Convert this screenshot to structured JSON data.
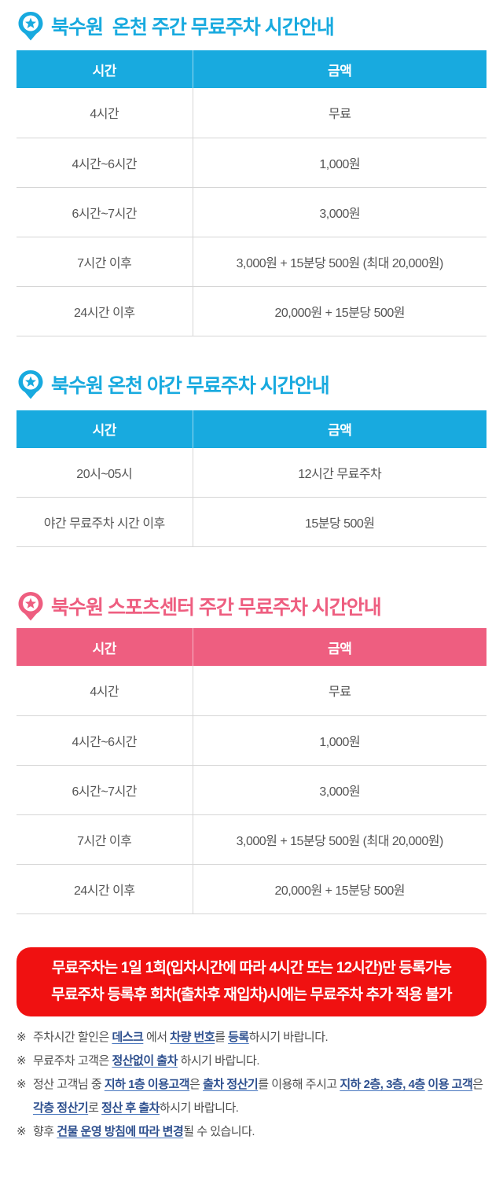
{
  "colors": {
    "blue": "#18aadf",
    "pink": "#ee5e80",
    "red": "#f01111",
    "link": "#2d4f8e",
    "body_text": "#555555",
    "note_text": "#4d4d4d",
    "divider": "#d6d6d6"
  },
  "sections": [
    {
      "id": "onsen-day",
      "accent": "blue",
      "title": "북수원  온천 주간 무료주차 시간안내",
      "table": {
        "headers": [
          "시간",
          "금액"
        ],
        "rows": [
          [
            "4시간",
            "무료"
          ],
          [
            "4시간~6시간",
            "1,000원"
          ],
          [
            "6시간~7시간",
            "3,000원"
          ],
          [
            "7시간 이후",
            "3,000원 + 15분당 500원 (최대 20,000원)"
          ],
          [
            "24시간 이후",
            "20,000원 + 15분당 500원"
          ]
        ]
      }
    },
    {
      "id": "onsen-night",
      "accent": "blue",
      "title": "북수원 온천 야간 무료주차 시간안내",
      "table": {
        "headers": [
          "시간",
          "금액"
        ],
        "rows": [
          [
            "20시~05시",
            "12시간 무료주차"
          ],
          [
            "야간 무료주차 시간 이후",
            "15분당 500원"
          ]
        ]
      }
    },
    {
      "id": "sports-day",
      "accent": "pink",
      "title": "북수원 스포츠센터 주간 무료주차 시간안내",
      "table": {
        "headers": [
          "시간",
          "금액"
        ],
        "rows": [
          [
            "4시간",
            "무료"
          ],
          [
            "4시간~6시간",
            "1,000원"
          ],
          [
            "6시간~7시간",
            "3,000원"
          ],
          [
            "7시간 이후",
            "3,000원 + 15분당 500원 (최대 20,000원)"
          ],
          [
            "24시간 이후",
            "20,000원 + 15분당 500원"
          ]
        ]
      }
    }
  ],
  "notice": {
    "lines": [
      "무료주차는 1일 1회(입차시간에 따라 4시간 또는 12시간)만 등록가능",
      "무료주차 등록후 회차(출차후 재입차)시에는 무료주차 추가 적용 불가"
    ]
  },
  "notes": [
    {
      "marker": "※",
      "segments": [
        {
          "t": "주차시간 할인은 "
        },
        {
          "t": "데스크",
          "link": true
        },
        {
          "t": " 에서 "
        },
        {
          "t": "차량 번호",
          "link": true
        },
        {
          "t": "를 "
        },
        {
          "t": "등록",
          "link": true
        },
        {
          "t": "하시기 바랍니다."
        }
      ]
    },
    {
      "marker": "※",
      "segments": [
        {
          "t": "무료주차 고객은 "
        },
        {
          "t": "정산없이 출차",
          "link": true
        },
        {
          "t": " 하시기 바랍니다."
        }
      ]
    },
    {
      "marker": "※",
      "segments": [
        {
          "t": "정산 고객님 중 "
        },
        {
          "t": "지하 1층 이용고객",
          "link": true
        },
        {
          "t": "은 "
        },
        {
          "t": "출차 정산기",
          "link": true
        },
        {
          "t": "를 이용해 주시고 "
        },
        {
          "t": "지하 2층, 3층, 4층",
          "link": true
        },
        {
          "t": " "
        },
        {
          "t": "이용 고객",
          "link": true
        },
        {
          "t": "은 "
        },
        {
          "t": "각층 정산기",
          "link": true
        },
        {
          "t": "로 "
        },
        {
          "t": "정산 후 출차",
          "link": true
        },
        {
          "t": "하시기 바랍니다."
        }
      ]
    },
    {
      "marker": "※",
      "segments": [
        {
          "t": "향후 "
        },
        {
          "t": "건물 운영 방침에 따라 변경",
          "link": true
        },
        {
          "t": "될 수 있습니다."
        }
      ]
    }
  ]
}
